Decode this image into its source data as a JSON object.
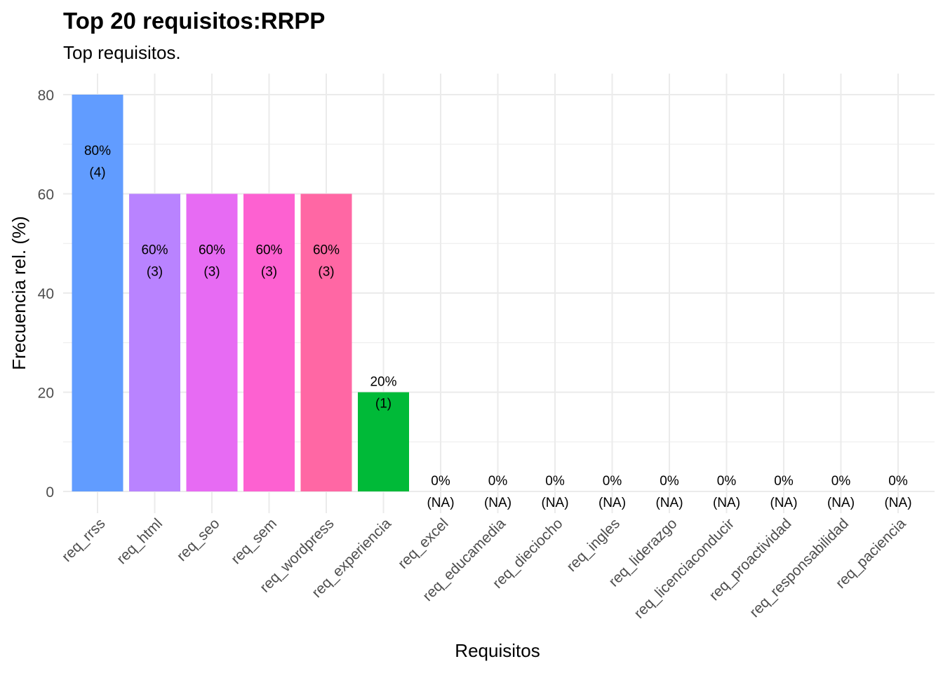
{
  "chart_data": {
    "type": "bar",
    "title": "Top 20 requisitos:RRPP",
    "subtitle": "Top requisitos.",
    "xlabel": "Requisitos",
    "ylabel": "Frecuencia rel. (%)",
    "ylim": [
      0,
      80
    ],
    "yticks": [
      0,
      20,
      40,
      60,
      80
    ],
    "grid": true,
    "legend": "none",
    "categories": [
      "req_rrss",
      "req_html",
      "req_seo",
      "req_sem",
      "req_wordpress",
      "req_experiencia",
      "req_excel",
      "req_educamedia",
      "req_dieciocho",
      "req_ingles",
      "req_liderazgo",
      "req_licenciaconducir",
      "req_proactividad",
      "req_responsabilidad",
      "req_paciencia"
    ],
    "values": [
      80,
      60,
      60,
      60,
      60,
      20,
      0,
      0,
      0,
      0,
      0,
      0,
      0,
      0,
      0
    ],
    "pct_labels": [
      "80%",
      "60%",
      "60%",
      "60%",
      "60%",
      "20%",
      "0%",
      "0%",
      "0%",
      "0%",
      "0%",
      "0%",
      "0%",
      "0%",
      "0%"
    ],
    "count_labels": [
      "(4)",
      "(3)",
      "(3)",
      "(3)",
      "(3)",
      "(1)",
      "(NA)",
      "(NA)",
      "(NA)",
      "(NA)",
      "(NA)",
      "(NA)",
      "(NA)",
      "(NA)",
      "(NA)"
    ],
    "colors": [
      "#619CFF",
      "#B983FF",
      "#E76BF3",
      "#FD61D1",
      "#FF67A4",
      "#00BA38",
      "#F8766D",
      "#E58700",
      "#C99800",
      "#A3A500",
      "#6BB100",
      "#00C0AF",
      "#00BCD8",
      "#00B0F6",
      "#35A2FF"
    ]
  }
}
